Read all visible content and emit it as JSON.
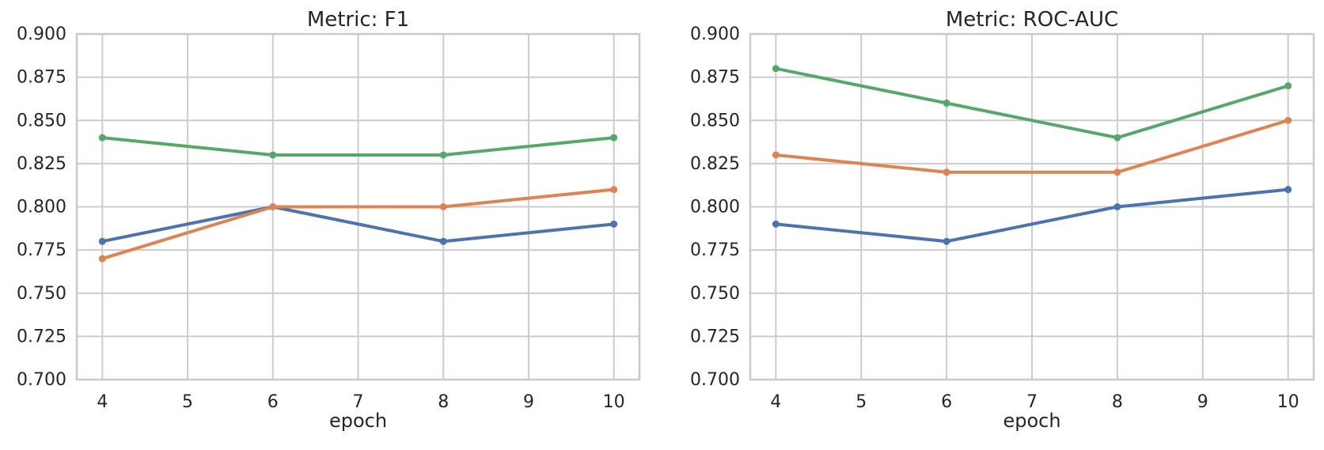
{
  "figure": {
    "background": "#ffffff",
    "text_color": "#262626",
    "grid_color": "#cccccc",
    "spine_color": "#c9c9c9"
  },
  "chart_data": [
    {
      "type": "line",
      "title": "Metric: F1",
      "xlabel": "epoch",
      "grid": true,
      "legend_position": "none",
      "x": [
        4,
        6,
        8,
        10
      ],
      "x_ticks": [
        4,
        5,
        6,
        7,
        8,
        9,
        10
      ],
      "y_tick_labels": [
        "0.700",
        "0.725",
        "0.750",
        "0.775",
        "0.800",
        "0.825",
        "0.850",
        "0.875",
        "0.900"
      ],
      "xlim": [
        3.7,
        10.3
      ],
      "ylim": [
        0.7,
        0.9
      ],
      "series": [
        {
          "name": "blue",
          "color": "#4c72b0",
          "values": [
            0.78,
            0.8,
            0.78,
            0.79
          ]
        },
        {
          "name": "orange",
          "color": "#dd8452",
          "values": [
            0.77,
            0.8,
            0.8,
            0.81
          ]
        },
        {
          "name": "green",
          "color": "#55a868",
          "values": [
            0.84,
            0.83,
            0.83,
            0.84
          ]
        }
      ]
    },
    {
      "type": "line",
      "title": "Metric: ROC-AUC",
      "xlabel": "epoch",
      "grid": true,
      "legend_position": "none",
      "x": [
        4,
        6,
        8,
        10
      ],
      "x_ticks": [
        4,
        5,
        6,
        7,
        8,
        9,
        10
      ],
      "y_tick_labels": [
        "0.700",
        "0.725",
        "0.750",
        "0.775",
        "0.800",
        "0.825",
        "0.850",
        "0.875",
        "0.900"
      ],
      "xlim": [
        3.7,
        10.3
      ],
      "ylim": [
        0.7,
        0.9
      ],
      "series": [
        {
          "name": "blue",
          "color": "#4c72b0",
          "values": [
            0.79,
            0.78,
            0.8,
            0.81
          ]
        },
        {
          "name": "orange",
          "color": "#dd8452",
          "values": [
            0.83,
            0.82,
            0.82,
            0.85
          ]
        },
        {
          "name": "green",
          "color": "#55a868",
          "values": [
            0.88,
            0.86,
            0.84,
            0.87
          ]
        }
      ]
    }
  ]
}
